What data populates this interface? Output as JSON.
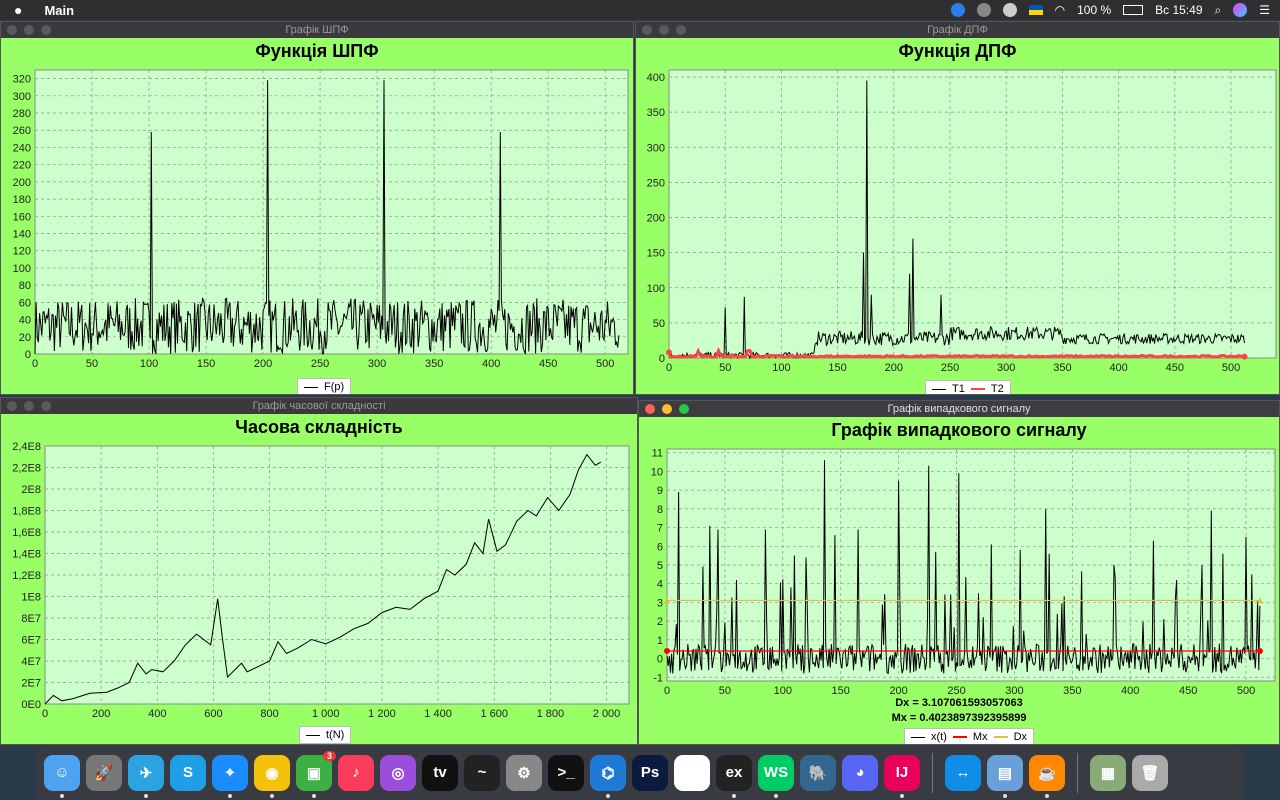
{
  "menubar": {
    "app_name": "Main",
    "battery": "100 %",
    "clock": "Вс 15:49"
  },
  "windows": [
    {
      "title": "Графік ШПФ",
      "chart_title": "Функція ШПФ",
      "legend": [
        "F(p)"
      ]
    },
    {
      "title": "Графік ДПФ",
      "chart_title": "Функція ДПФ",
      "legend": [
        "T1",
        "T2"
      ]
    },
    {
      "title": "Графік часової складності",
      "chart_title": "Часова складність",
      "legend": [
        "t(N)"
      ]
    },
    {
      "title": "Графік випадкового сигналу",
      "chart_title": "Графік випадкового сигналу",
      "legend": [
        "x(t)",
        "Mx",
        "Dx"
      ],
      "dx_text": "Dx = 3.107061593057063",
      "mx_text": "Mx = 0.4023897392395899"
    }
  ],
  "chart_data": [
    {
      "type": "line",
      "title": "Функція ШПФ",
      "xlim": [
        0,
        520
      ],
      "ylim": [
        0,
        330
      ],
      "x_ticks": [
        0,
        50,
        100,
        150,
        200,
        250,
        300,
        350,
        400,
        450,
        500
      ],
      "y_ticks": [
        0,
        20,
        40,
        60,
        80,
        100,
        120,
        140,
        160,
        180,
        200,
        220,
        240,
        260,
        280,
        300,
        320
      ],
      "series": [
        {
          "name": "F(p)",
          "color": "#000000",
          "noise_range": [
            0,
            65
          ],
          "spikes": [
            [
              102,
              258
            ],
            [
              204,
              318
            ],
            [
              306,
              318
            ],
            [
              408,
              258
            ]
          ],
          "x_end": 512
        }
      ]
    },
    {
      "type": "line",
      "title": "Функція ДПФ",
      "xlim": [
        0,
        540
      ],
      "ylim": [
        0,
        410
      ],
      "x_ticks": [
        0,
        50,
        100,
        150,
        200,
        250,
        300,
        350,
        400,
        450,
        500
      ],
      "y_ticks": [
        0,
        50,
        100,
        150,
        200,
        250,
        300,
        350,
        400
      ],
      "series": [
        {
          "name": "T1",
          "color": "#000000",
          "x_end": 512,
          "segments": [
            [
              0,
              130,
              0,
              8
            ],
            [
              130,
              250,
              18,
              38
            ],
            [
              250,
              350,
              25,
              45
            ],
            [
              350,
              512,
              20,
              35
            ]
          ],
          "spikes": [
            [
              50,
              72
            ],
            [
              67,
              87
            ],
            [
              176,
              395
            ],
            [
              173,
              150
            ],
            [
              217,
              170
            ],
            [
              214,
              120
            ],
            [
              242,
              90
            ],
            [
              180,
              90
            ]
          ]
        },
        {
          "name": "T2",
          "color": "#ff4444",
          "x_end": 512,
          "level": 3
        }
      ]
    },
    {
      "type": "line",
      "title": "Часова складність",
      "xlim": [
        0,
        2080
      ],
      "ylim": [
        0,
        240000000
      ],
      "x_ticks": [
        0,
        200,
        400,
        600,
        800,
        1000,
        1200,
        1400,
        1600,
        1800,
        2000
      ],
      "x_tick_labels": [
        "0",
        "200",
        "400",
        "600",
        "800",
        "1 000",
        "1 200",
        "1 400",
        "1 600",
        "1 800",
        "2 000"
      ],
      "y_ticks": [
        0,
        20000000,
        40000000,
        60000000,
        80000000,
        100000000,
        120000000,
        140000000,
        160000000,
        180000000,
        200000000,
        220000000,
        240000000
      ],
      "y_tick_labels": [
        "0E0",
        "2E7",
        "4E7",
        "6E7",
        "8E7",
        "1E8",
        "1,2E8",
        "1,4E8",
        "1,6E8",
        "1,8E8",
        "2E8",
        "2,2E8",
        "2,4E8"
      ],
      "series": [
        {
          "name": "t(N)",
          "color": "#000000",
          "points": [
            [
              0,
              0
            ],
            [
              30,
              8000000
            ],
            [
              60,
              3000000
            ],
            [
              100,
              5000000
            ],
            [
              160,
              10000000
            ],
            [
              220,
              11000000
            ],
            [
              260,
              15000000
            ],
            [
              300,
              20000000
            ],
            [
              330,
              38000000
            ],
            [
              360,
              28000000
            ],
            [
              380,
              32000000
            ],
            [
              420,
              30000000
            ],
            [
              460,
              40000000
            ],
            [
              500,
              55000000
            ],
            [
              540,
              65000000
            ],
            [
              590,
              55000000
            ],
            [
              615,
              98000000
            ],
            [
              630,
              65000000
            ],
            [
              650,
              25000000
            ],
            [
              700,
              38000000
            ],
            [
              720,
              30000000
            ],
            [
              760,
              35000000
            ],
            [
              800,
              40000000
            ],
            [
              830,
              58000000
            ],
            [
              860,
              47000000
            ],
            [
              900,
              52000000
            ],
            [
              950,
              60000000
            ],
            [
              1000,
              56000000
            ],
            [
              1050,
              62000000
            ],
            [
              1100,
              70000000
            ],
            [
              1150,
              75000000
            ],
            [
              1200,
              85000000
            ],
            [
              1250,
              90000000
            ],
            [
              1300,
              88000000
            ],
            [
              1350,
              98000000
            ],
            [
              1400,
              105000000
            ],
            [
              1430,
              125000000
            ],
            [
              1460,
              120000000
            ],
            [
              1500,
              130000000
            ],
            [
              1530,
              150000000
            ],
            [
              1560,
              140000000
            ],
            [
              1580,
              172000000
            ],
            [
              1610,
              142000000
            ],
            [
              1640,
              148000000
            ],
            [
              1680,
              170000000
            ],
            [
              1720,
              180000000
            ],
            [
              1750,
              175000000
            ],
            [
              1790,
              192000000
            ],
            [
              1830,
              180000000
            ],
            [
              1870,
              195000000
            ],
            [
              1900,
              218000000
            ],
            [
              1930,
              232000000
            ],
            [
              1960,
              222000000
            ],
            [
              1980,
              225000000
            ]
          ]
        }
      ]
    },
    {
      "type": "line",
      "title": "Графік випадкового сигналу",
      "xlim": [
        0,
        525
      ],
      "ylim": [
        -1.2,
        11.2
      ],
      "x_ticks": [
        0,
        50,
        100,
        150,
        200,
        250,
        300,
        350,
        400,
        450,
        500
      ],
      "y_ticks": [
        -1,
        0,
        1,
        2,
        3,
        4,
        5,
        6,
        7,
        8,
        9,
        10,
        11
      ],
      "series": [
        {
          "name": "x(t)",
          "color": "#000000",
          "x_end": 512,
          "noise_range": [
            -0.8,
            0.8
          ],
          "spikes": [
            [
              10,
              8.9
            ],
            [
              37,
              7.1
            ],
            [
              44,
              6.9
            ],
            [
              60,
              4.2
            ],
            [
              85,
              6.9
            ],
            [
              110,
              5.5
            ],
            [
              120,
              5.4
            ],
            [
              136,
              10.6
            ],
            [
              145,
              6.6
            ],
            [
              165,
              6.9
            ],
            [
              200,
              9.5
            ],
            [
              226,
              10.3
            ],
            [
              232,
              5.7
            ],
            [
              252,
              9.9
            ],
            [
              280,
              6.1
            ],
            [
              305,
              5.8
            ],
            [
              327,
              8.0
            ],
            [
              330,
              5.6
            ],
            [
              386,
              5.0
            ],
            [
              420,
              6.3
            ],
            [
              440,
              4.2
            ],
            [
              470,
              7.9
            ],
            [
              462,
              5.0
            ],
            [
              480,
              5.6
            ],
            [
              500,
              6.5
            ],
            [
              505,
              4.5
            ]
          ]
        },
        {
          "name": "Mx",
          "color": "#ff0000",
          "level": 0.402
        },
        {
          "name": "Dx",
          "color": "#e0c040",
          "level": 3.107
        }
      ]
    }
  ],
  "dock": [
    "Finder",
    "Launchpad",
    "Telegram",
    "Skype",
    "Safari",
    "Chrome",
    "FaceTime",
    "Music",
    "Podcasts",
    "TV",
    "Activity Monitor",
    "System Preferences",
    "Terminal",
    "VS Code",
    "Photoshop",
    "Slack",
    "Script Editor",
    "WebStorm",
    "PostgreSQL",
    "Discord",
    "IntelliJ",
    "TeamViewer",
    "Preview",
    "Java",
    "Downloads",
    "Trash"
  ],
  "dock_badge": "3"
}
